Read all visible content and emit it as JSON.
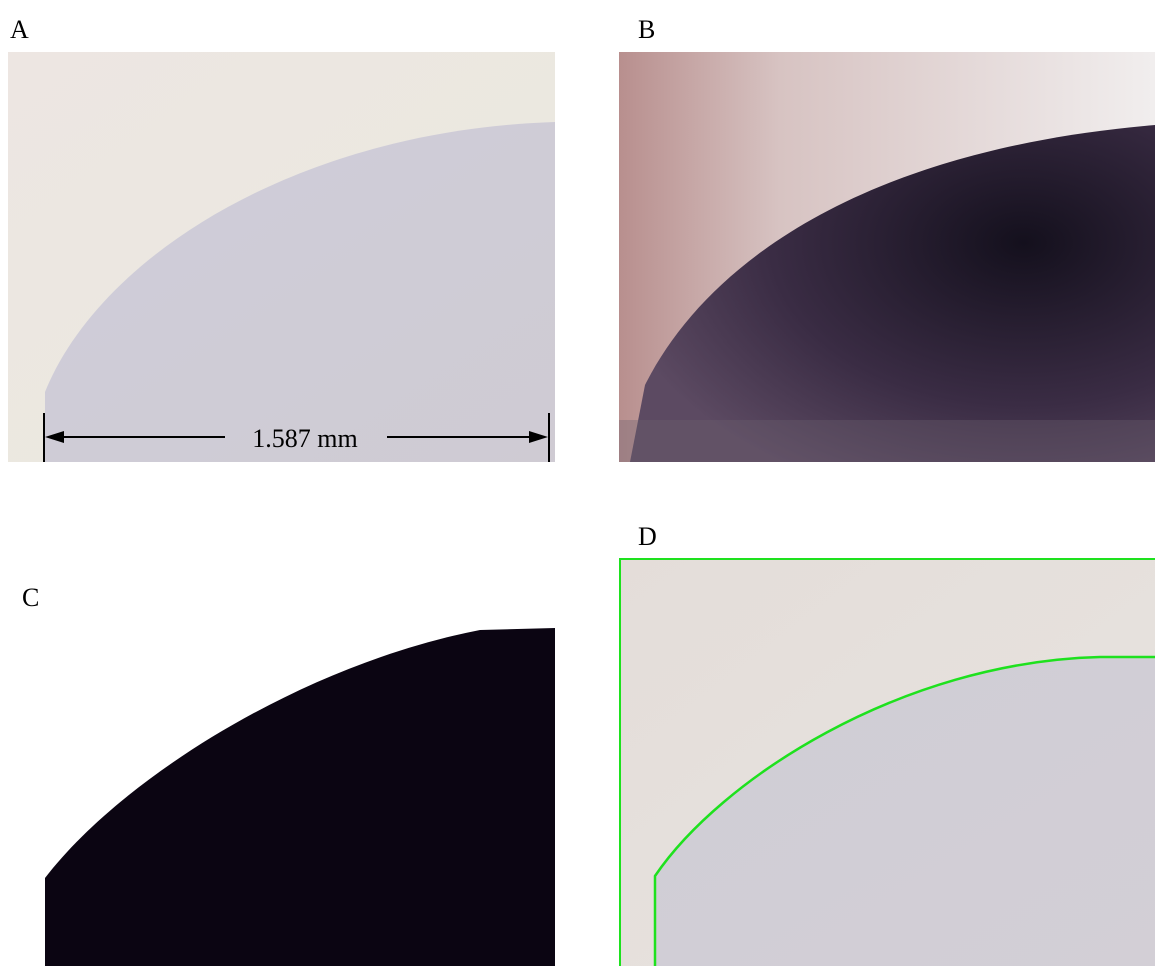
{
  "panels": [
    {
      "label": "A",
      "scale_label": "1.587 mm"
    },
    {
      "label": "B"
    },
    {
      "label": "C"
    },
    {
      "label": "D"
    }
  ]
}
